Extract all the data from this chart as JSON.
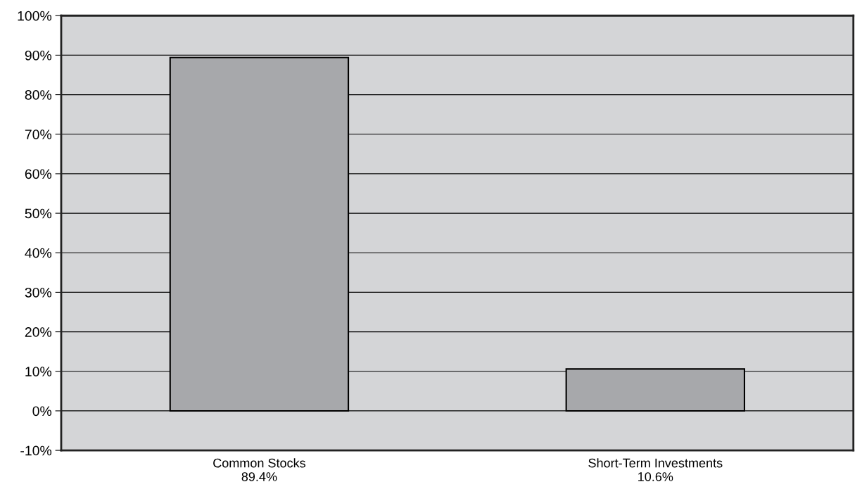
{
  "chart_data": {
    "type": "bar",
    "categories": [
      "Common Stocks",
      "Short-Term Investments"
    ],
    "values": [
      89.4,
      10.6
    ],
    "value_labels": [
      "89.4%",
      "10.6%"
    ],
    "color": "#a7a8ab",
    "ylim": [
      -10,
      100
    ],
    "yticks": [
      {
        "value": -10,
        "label": "-10%"
      },
      {
        "value": 0,
        "label": "0%"
      },
      {
        "value": 10,
        "label": "10%"
      },
      {
        "value": 20,
        "label": "20%"
      },
      {
        "value": 30,
        "label": "30%"
      },
      {
        "value": 40,
        "label": "40%"
      },
      {
        "value": 50,
        "label": "50%"
      },
      {
        "value": 60,
        "label": "60%"
      },
      {
        "value": 70,
        "label": "70%"
      },
      {
        "value": 80,
        "label": "80%"
      },
      {
        "value": 90,
        "label": "90%"
      },
      {
        "value": 100,
        "label": "100%"
      }
    ],
    "grid": "y"
  }
}
